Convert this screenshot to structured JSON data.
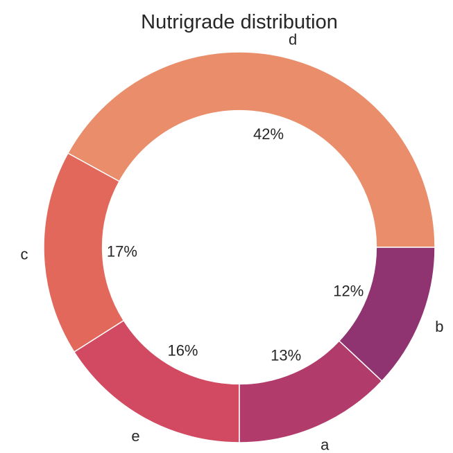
{
  "chart_data": {
    "type": "pie",
    "subtype": "donut",
    "title": "Nutrigrade distribution",
    "categories": [
      "d",
      "c",
      "e",
      "a",
      "b"
    ],
    "values": [
      42,
      17,
      16,
      13,
      12
    ],
    "value_labels": [
      "42%",
      "17%",
      "16%",
      "13%",
      "12%"
    ],
    "colors": [
      "#e98d6b",
      "#e3685c",
      "#d14a61",
      "#b13c6c",
      "#8f3371"
    ],
    "start_angle": 0,
    "direction": "counterclockwise",
    "inner_radius_ratio": 0.7,
    "legend": "none"
  }
}
